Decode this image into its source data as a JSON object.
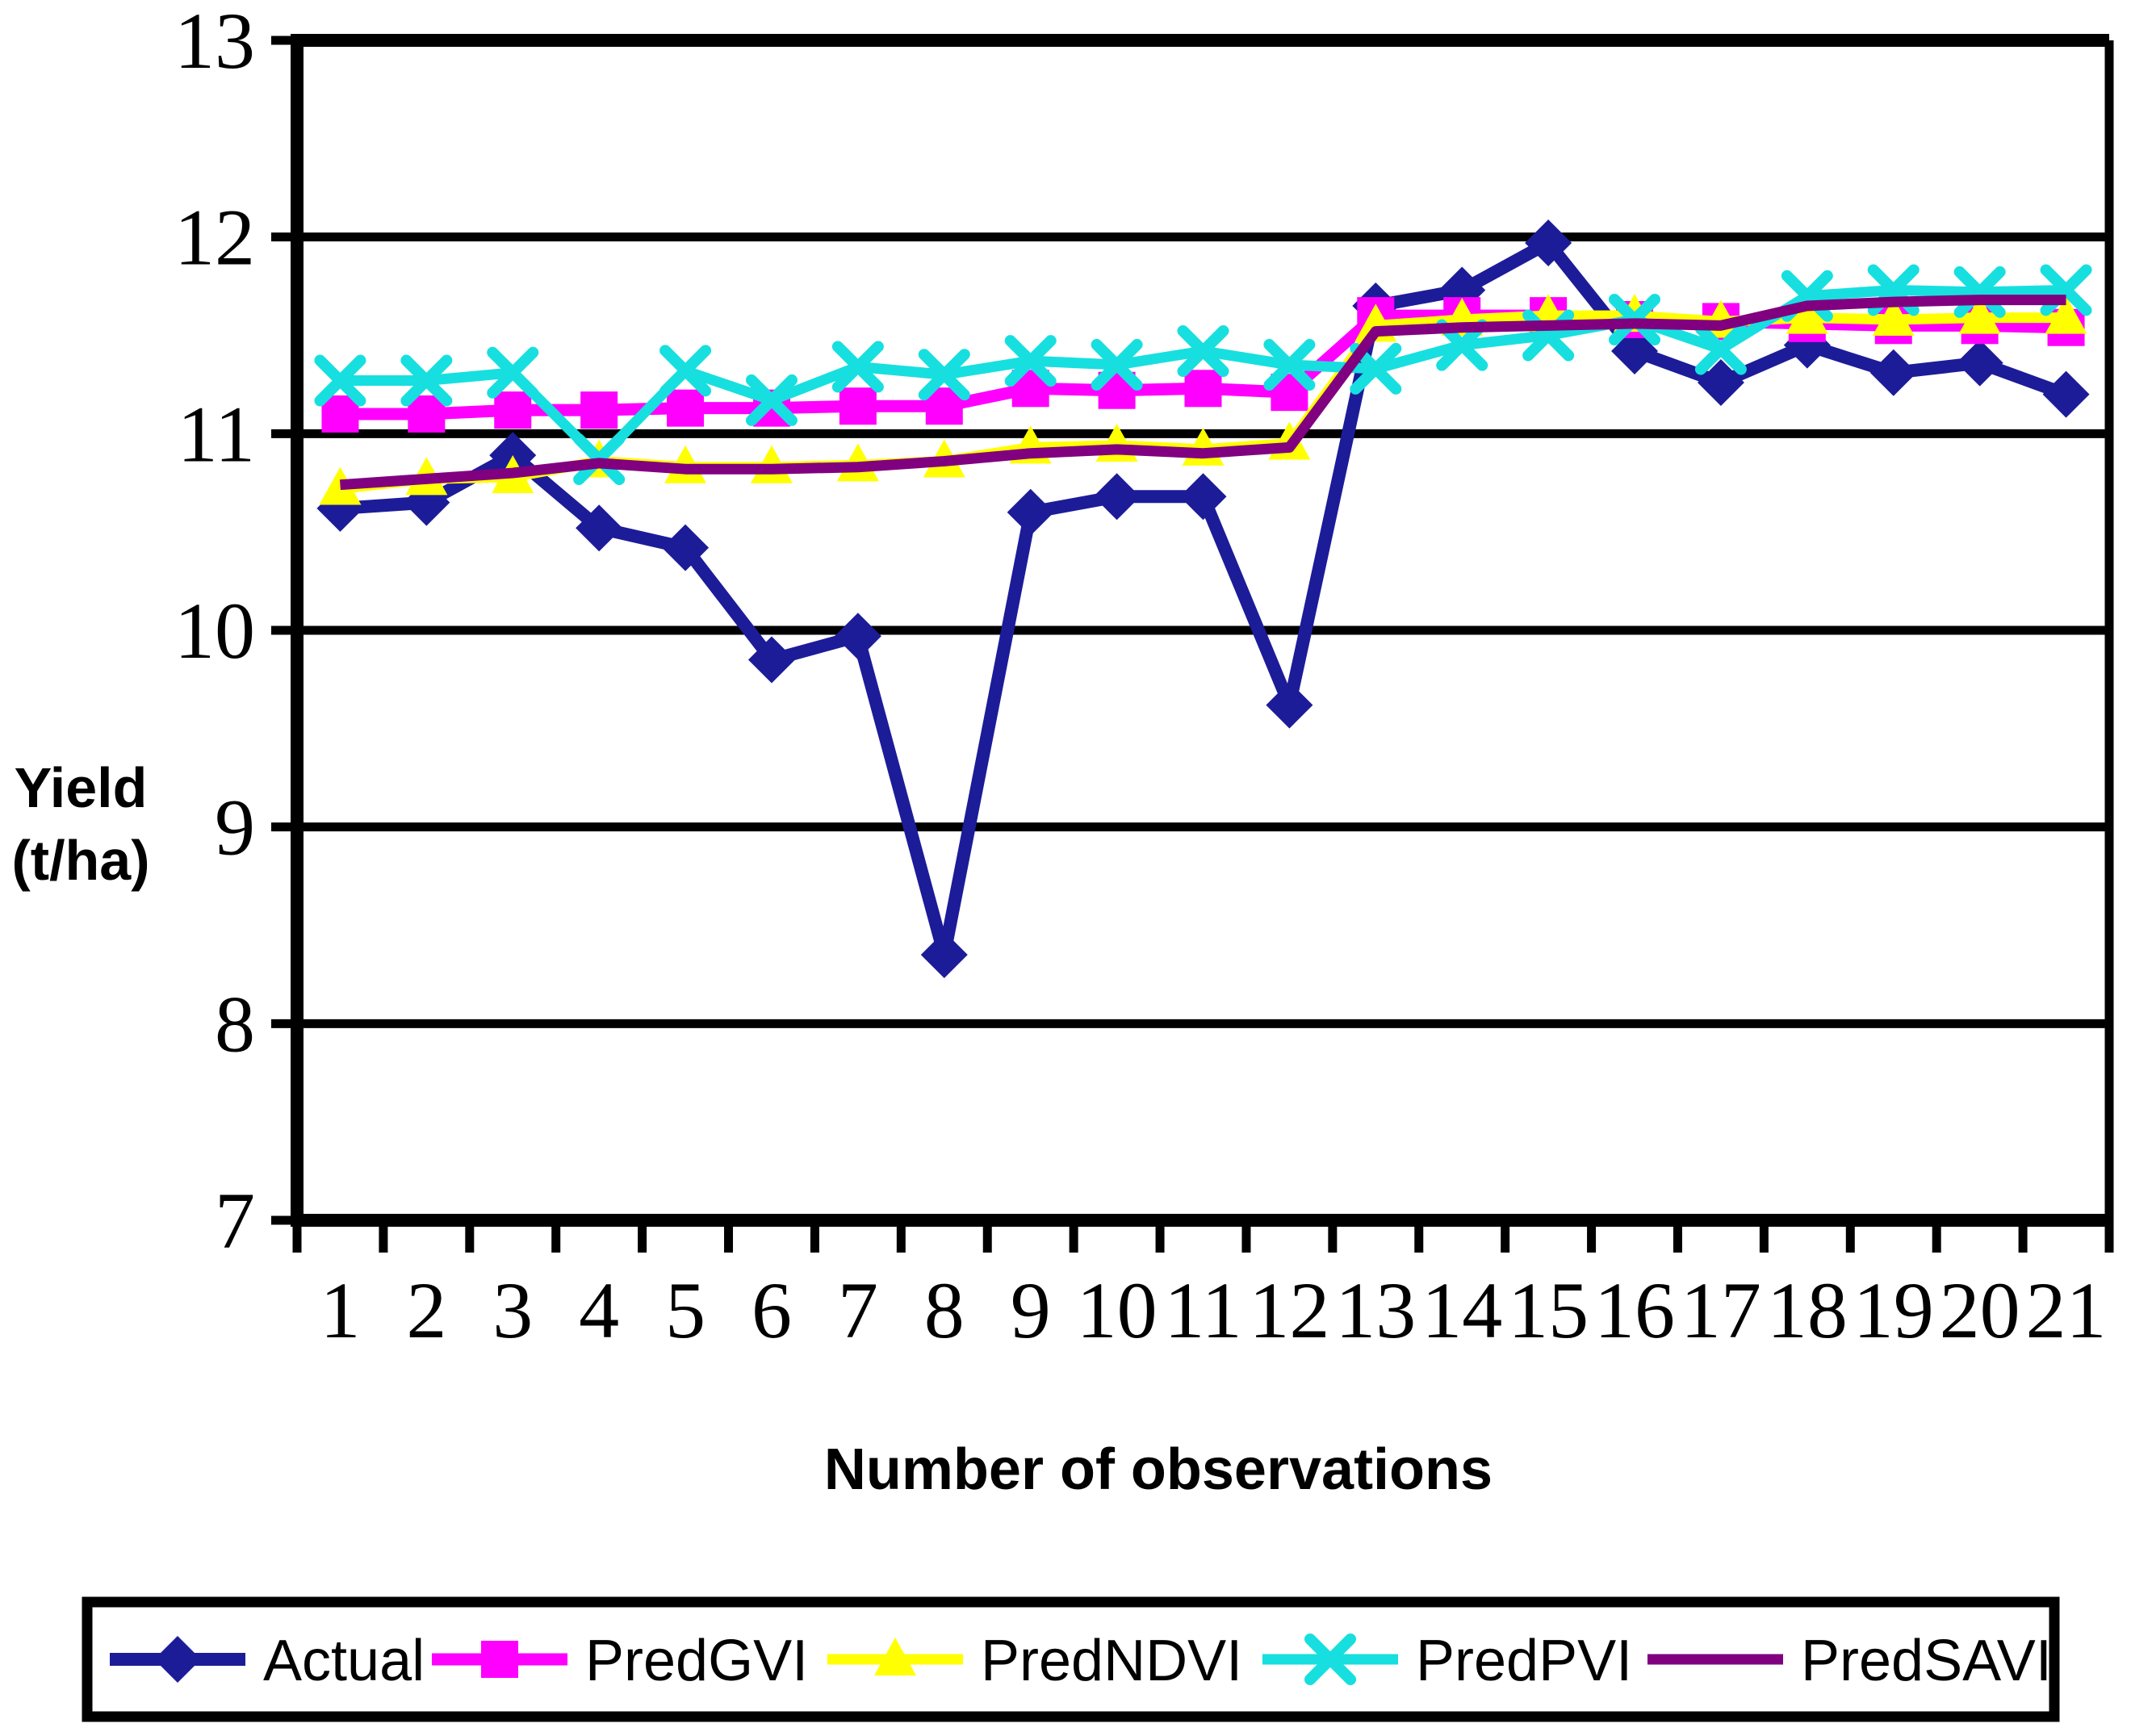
{
  "chart_data": {
    "type": "line",
    "title": "",
    "xlabel": "Number of observations",
    "ylabel": "Yield (t/ha)",
    "ylabel_lines": [
      "Yield",
      "(t/ha)"
    ],
    "x": [
      1,
      2,
      3,
      4,
      5,
      6,
      7,
      8,
      9,
      10,
      11,
      12,
      13,
      14,
      15,
      16,
      17,
      18,
      19,
      20,
      21
    ],
    "ylim": [
      7,
      13
    ],
    "ytick_step": 1,
    "grid": "horizontal",
    "legend_position": "bottom",
    "axis_color": "#000000",
    "background_color": "#ffffff",
    "series": [
      {
        "name": "Actual",
        "color": "#1c1c99",
        "marker": "diamond",
        "values": [
          10.62,
          10.65,
          10.89,
          10.52,
          10.42,
          9.85,
          9.97,
          8.35,
          10.6,
          10.68,
          10.68,
          9.62,
          11.65,
          11.73,
          11.97,
          11.42,
          11.26,
          11.45,
          11.31,
          11.36,
          11.2
        ]
      },
      {
        "name": "PredGVI",
        "color": "#ff00ff",
        "marker": "square",
        "values": [
          11.1,
          11.1,
          11.12,
          11.12,
          11.13,
          11.13,
          11.14,
          11.14,
          11.23,
          11.22,
          11.23,
          11.21,
          11.6,
          11.6,
          11.6,
          11.58,
          11.57,
          11.56,
          11.55,
          11.55,
          11.54
        ]
      },
      {
        "name": "PredNDVI",
        "color": "#ffff00",
        "marker": "triangle",
        "values": [
          10.72,
          10.77,
          10.78,
          10.86,
          10.83,
          10.83,
          10.84,
          10.86,
          10.93,
          10.94,
          10.92,
          10.95,
          11.55,
          11.58,
          11.6,
          11.6,
          11.57,
          11.59,
          11.58,
          11.59,
          11.59
        ]
      },
      {
        "name": "PredPVI",
        "color": "#17dfdf",
        "marker": "x",
        "values": [
          11.27,
          11.27,
          11.31,
          10.87,
          11.32,
          11.17,
          11.34,
          11.3,
          11.37,
          11.35,
          11.42,
          11.35,
          11.33,
          11.45,
          11.5,
          11.58,
          11.43,
          11.7,
          11.73,
          11.72,
          11.73
        ]
      },
      {
        "name": "PredSAVI",
        "color": "#800080",
        "marker": "none",
        "values": [
          10.74,
          10.77,
          10.8,
          10.85,
          10.82,
          10.82,
          10.83,
          10.86,
          10.9,
          10.92,
          10.9,
          10.93,
          11.52,
          11.54,
          11.55,
          11.56,
          11.55,
          11.65,
          11.67,
          11.68,
          11.68
        ]
      }
    ]
  }
}
